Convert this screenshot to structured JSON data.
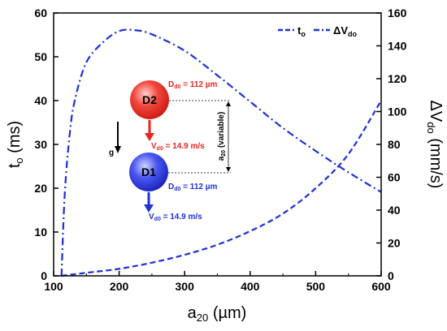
{
  "chart_data": {
    "type": "line",
    "x_axis": {
      "label": "a",
      "label_sub": "20",
      "label_unit": " (µm)",
      "range": [
        100,
        600
      ],
      "ticks": [
        100,
        200,
        300,
        400,
        500,
        600
      ]
    },
    "y_left": {
      "label": "t",
      "label_sub": "o",
      "label_unit": " (ms)",
      "range": [
        0,
        60
      ],
      "ticks": [
        0,
        10,
        20,
        30,
        40,
        50,
        60
      ]
    },
    "y_right": {
      "label": "ΔV",
      "label_sub": "do",
      "label_unit": " (mm/s)",
      "range": [
        0,
        160
      ],
      "ticks": [
        0,
        20,
        40,
        60,
        80,
        100,
        120,
        140,
        160
      ]
    },
    "color": "#1b2fd6",
    "legend_position": "top-right",
    "series": [
      {
        "name": "t",
        "name_sub": "o",
        "axis": "left",
        "style": "dashed",
        "x": [
          112,
          150,
          200,
          250,
          300,
          350,
          400,
          450,
          500,
          550,
          600
        ],
        "y": [
          0,
          0.7,
          1.6,
          3.0,
          4.8,
          7.1,
          10.2,
          14.2,
          20.0,
          27.8,
          40.0
        ]
      },
      {
        "name": "ΔV",
        "name_sub": "do",
        "axis": "right",
        "style": "dash-dot",
        "x": [
          112,
          117,
          125,
          133,
          150,
          175,
          200,
          225,
          250,
          300,
          350,
          400,
          450,
          500,
          550,
          600
        ],
        "y": [
          0,
          50,
          88,
          108,
          130,
          142,
          149,
          149.5,
          147,
          137,
          122,
          106,
          90,
          76,
          63,
          51
        ]
      }
    ],
    "annotations": {
      "top_drop": {
        "label": "D2",
        "diameter_label": "D",
        "diameter_sub": "d0",
        "diameter_value": " = 112 µm",
        "velocity_label": "V",
        "velocity_sub": "d0",
        "velocity_value": " = 14.9 m/s",
        "color": "#e8261e"
      },
      "bottom_drop": {
        "label": "D1",
        "diameter_label": "D",
        "diameter_sub": "d0",
        "diameter_value": " = 112 µm",
        "velocity_label": "V",
        "velocity_sub": "d0",
        "velocity_value": " = 14.9 m/s",
        "color": "#2030d8"
      },
      "gravity_label": "g",
      "spacing_label": "a",
      "spacing_sub": "20",
      "spacing_text": " (variable)"
    }
  }
}
